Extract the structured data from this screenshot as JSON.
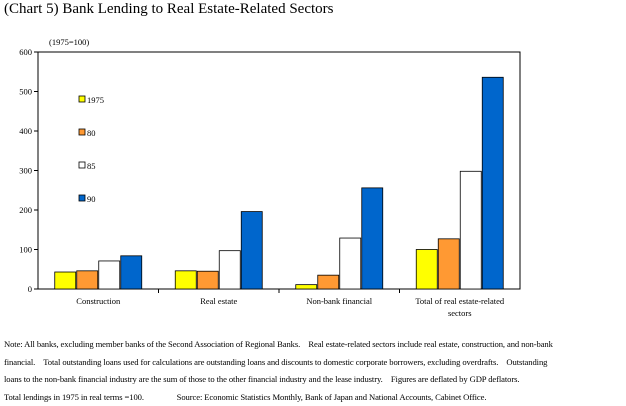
{
  "header": {
    "title": "(Chart 5) Bank Lending to Real Estate-Related Sectors",
    "unit": "(1975=100)"
  },
  "chart_data": {
    "type": "bar",
    "categories": [
      "Construction",
      "Real estate",
      "Non-bank financial",
      "Total of real estate-related sectors"
    ],
    "category_lines": [
      [
        "Construction"
      ],
      [
        "Real estate"
      ],
      [
        "Non-bank financial"
      ],
      [
        "Total of real estate-related",
        "sectors"
      ]
    ],
    "series": [
      {
        "name": "1975",
        "color": "#ffff00",
        "values": [
          43,
          46,
          11,
          100
        ]
      },
      {
        "name": "80",
        "color": "#ff9933",
        "values": [
          46,
          45,
          35,
          127
        ]
      },
      {
        "name": "85",
        "color": "#ffffff",
        "values": [
          71,
          97,
          129,
          298
        ]
      },
      {
        "name": "90",
        "color": "#0066cc",
        "values": [
          84,
          196,
          256,
          536
        ]
      }
    ],
    "ylim": [
      0,
      600
    ],
    "yticks": [
      "0",
      "100",
      "200",
      "300",
      "400",
      "500",
      "600"
    ],
    "xlabel": "",
    "ylabel": "(1975=100)",
    "legend_position": "upper-left inside plot",
    "grid": false
  },
  "footnote": {
    "lines": [
      "Note: All banks, excluding member banks of the Second Association of Regional Banks.    Real estate-related sectors include real estate, construction, and non-bank",
      "financial.    Total outstanding loans used for calculations are outstanding loans and discounts to domestic corporate borrowers, excluding overdrafts.    Outstanding",
      "loans to the non-bank financial industry are the sum of those to the other financial industry and the lease industry.    Figures are deflated by GDP deflators.",
      "Total lendings in 1975 in real terms =100.                Source: Economic Statistics Monthly, Bank of Japan and National Accounts, Cabinet Office."
    ]
  }
}
